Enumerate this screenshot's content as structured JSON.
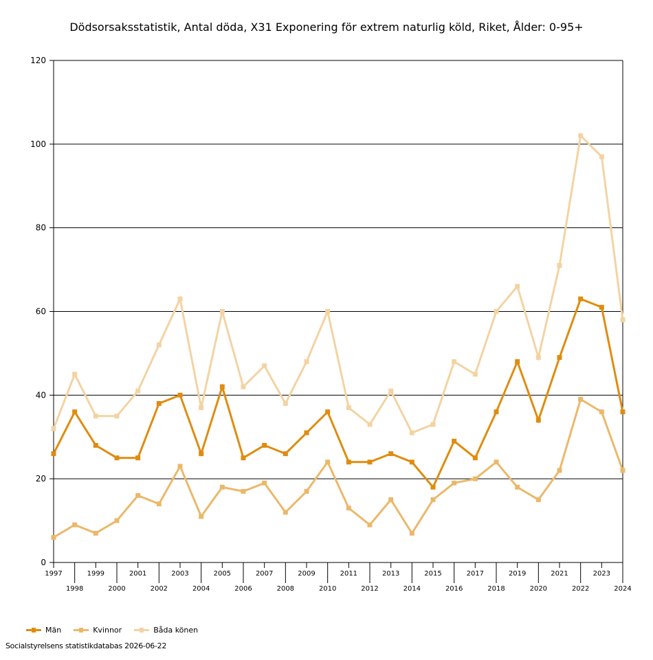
{
  "chart_data": {
    "type": "line",
    "title": "Dödsorsaksstatistik, Antal döda, X31 Exponering för extrem naturlig köld, Riket, Ålder: 0-95+",
    "xlabel": "",
    "ylabel": "",
    "ylim": [
      0,
      120
    ],
    "yticks": [
      0,
      20,
      40,
      60,
      80,
      100,
      120
    ],
    "grid": true,
    "legend_position": "bottom-left",
    "x": [
      "1997",
      "1998",
      "1999",
      "2000",
      "2001",
      "2002",
      "2003",
      "2004",
      "2005",
      "2006",
      "2007",
      "2008",
      "2009",
      "2010",
      "2011",
      "2012",
      "2013",
      "2014",
      "2015",
      "2016",
      "2017",
      "2018",
      "2019",
      "2020",
      "2021",
      "2022",
      "2023",
      "2024"
    ],
    "series": [
      {
        "name": "Män",
        "color": "#df8c10",
        "line_width": 3,
        "values": [
          26,
          36,
          28,
          25,
          25,
          38,
          40,
          26,
          42,
          25,
          28,
          26,
          31,
          36,
          24,
          24,
          26,
          24,
          18,
          29,
          25,
          36,
          48,
          34,
          49,
          63,
          61,
          36
        ]
      },
      {
        "name": "Kvinnor",
        "color": "#ebb86a",
        "line_width": 3,
        "values": [
          6,
          9,
          7,
          10,
          16,
          14,
          23,
          11,
          18,
          17,
          19,
          12,
          17,
          24,
          13,
          9,
          15,
          7,
          15,
          19,
          20,
          24,
          18,
          15,
          22,
          39,
          36,
          22
        ]
      },
      {
        "name": "Båda könen",
        "color": "#f3d3a3",
        "line_width": 3,
        "values": [
          32,
          45,
          35,
          35,
          41,
          52,
          63,
          37,
          60,
          42,
          47,
          38,
          48,
          60,
          37,
          33,
          41,
          31,
          33,
          48,
          45,
          60,
          66,
          49,
          71,
          102,
          97,
          58
        ]
      }
    ]
  },
  "footer": {
    "source": "Socialstyrelsens statistikdatabas 2026-06-22"
  }
}
